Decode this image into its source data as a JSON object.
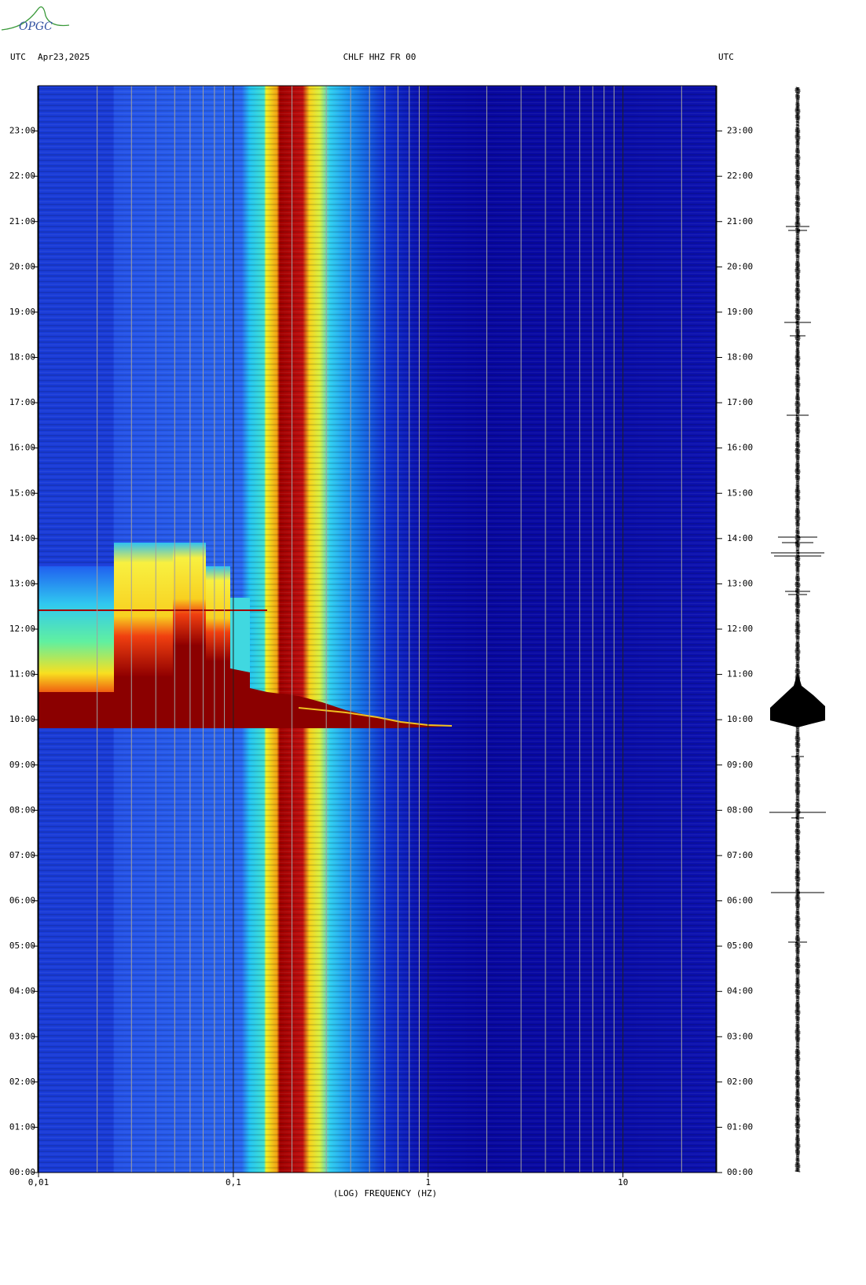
{
  "header": {
    "logo": "OPGC",
    "left_zone": "UTC",
    "date": "Apr23,2025",
    "right_zone": "UTC"
  },
  "chart_data": {
    "type": "spectrogram",
    "title": "CHLF HHZ FR 00",
    "x_label": "(LOG) FREQUENCY (HZ)",
    "x_scale": "log",
    "xlim": [
      0.01,
      30
    ],
    "xticks": [
      {
        "value": 0.01,
        "label": "0,01"
      },
      {
        "value": 0.1,
        "label": "0,1"
      },
      1,
      10
    ],
    "xgrid": [
      0.02,
      0.03,
      0.04,
      0.05,
      0.06,
      0.07,
      0.08,
      0.09,
      0.2,
      0.3,
      0.4,
      0.5,
      0.6,
      0.7,
      0.8,
      0.9,
      2,
      3,
      4,
      5,
      6,
      7,
      8,
      9,
      20
    ],
    "ylim": [
      0,
      24
    ],
    "yticks": [
      {
        "value": 0,
        "label": "00:00"
      },
      {
        "value": 1,
        "label": "01:00"
      },
      {
        "value": 2,
        "label": "02:00"
      },
      {
        "value": 3,
        "label": "03:00"
      },
      {
        "value": 4,
        "label": "04:00"
      },
      {
        "value": 5,
        "label": "05:00"
      },
      {
        "value": 6,
        "label": "06:00"
      },
      {
        "value": 7,
        "label": "07:00"
      },
      {
        "value": 8,
        "label": "08:00"
      },
      {
        "value": 9,
        "label": "09:00"
      },
      {
        "value": 10,
        "label": "10:00"
      },
      {
        "value": 11,
        "label": "11:00"
      },
      {
        "value": 12,
        "label": "12:00"
      },
      {
        "value": 13,
        "label": "13:00"
      },
      {
        "value": 14,
        "label": "14:00"
      },
      {
        "value": 15,
        "label": "15:00"
      },
      {
        "value": 16,
        "label": "16:00"
      },
      {
        "value": 17,
        "label": "17:00"
      },
      {
        "value": 18,
        "label": "18:00"
      },
      {
        "value": 19,
        "label": "19:00"
      },
      {
        "value": 20,
        "label": "20:00"
      },
      {
        "value": 21,
        "label": "21:00"
      },
      {
        "value": 22,
        "label": "22:00"
      },
      {
        "value": 23,
        "label": "23:00"
      }
    ]
  }
}
